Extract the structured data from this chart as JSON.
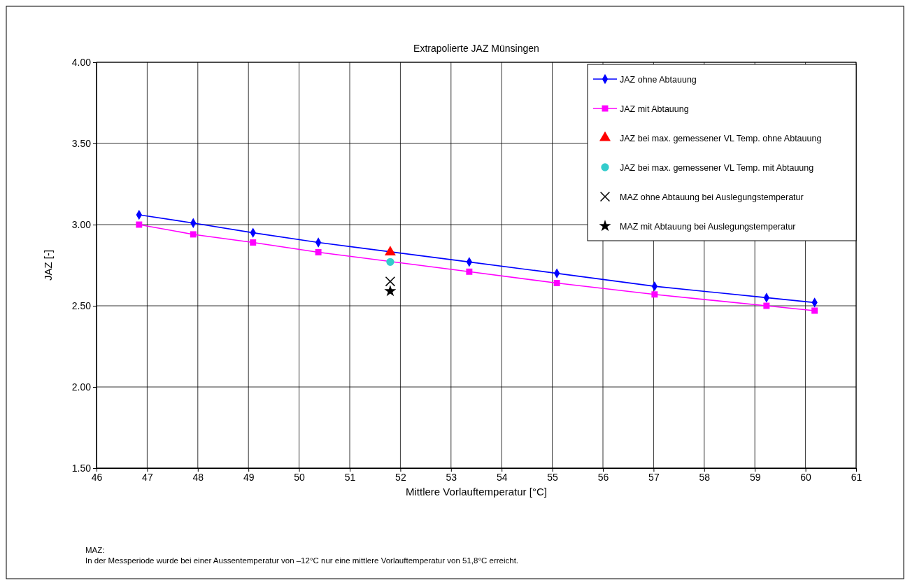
{
  "chart_data": {
    "type": "line",
    "title": "Extrapolierte JAZ Münsingen",
    "xlabel": "Mittlere Vorlauftemperatur [°C]",
    "ylabel": "JAZ [-]",
    "annotations": [
      "MAZ:",
      "In der Messperiode wurde bei einer Aussentemperatur von –12°C nur eine mittlere Vorlauftemperatur von 51,8°C erreicht."
    ],
    "xlim": [
      46,
      61
    ],
    "xticks": [
      46,
      47,
      48,
      49,
      50,
      51,
      52,
      53,
      54,
      55,
      56,
      57,
      58,
      59,
      60,
      61
    ],
    "ylim": [
      1.5,
      4
    ],
    "yticks": [
      {
        "value": 1.5,
        "label": "1.50"
      },
      {
        "value": 2,
        "label": "2.00"
      },
      {
        "value": 2.5,
        "label": "2.50"
      },
      {
        "value": 3,
        "label": "3.00"
      },
      {
        "value": 3.5,
        "label": "3.50"
      },
      {
        "value": 4,
        "label": "4.00"
      }
    ],
    "grid": true,
    "legend": "top right",
    "series": [
      {
        "name": "JAZ ohne Abtauung",
        "marker": "diamond",
        "color": "#0000ff",
        "x": [
          46.84,
          47.91,
          49.09,
          50.38,
          53.36,
          55.09,
          57.02,
          59.23,
          60.18
        ],
        "values": [
          3.06,
          3.01,
          2.95,
          2.89,
          2.77,
          2.7,
          2.62,
          2.55,
          2.52
        ]
      },
      {
        "name": "JAZ mit Abtauung",
        "marker": "square",
        "color": "#ff00ff",
        "x": [
          46.84,
          47.91,
          49.09,
          50.38,
          53.36,
          55.09,
          57.02,
          59.23,
          60.18
        ],
        "values": [
          3.0,
          2.94,
          2.89,
          2.83,
          2.71,
          2.64,
          2.57,
          2.5,
          2.47
        ]
      },
      {
        "name": "JAZ bei max. gemessener VL Temp. ohne Abtauung",
        "type": "scatter",
        "marker": "triangle",
        "color": "#ff0000",
        "x": [
          51.8
        ],
        "values": [
          2.83
        ]
      },
      {
        "name": "JAZ bei max. gemessener VL Temp. mit Abtauung",
        "type": "scatter",
        "marker": "circle",
        "color": "#33cccc",
        "x": [
          51.8
        ],
        "values": [
          2.77
        ]
      },
      {
        "name": "MAZ ohne Abtauung bei Auslegungstemperatur",
        "type": "scatter",
        "marker": "cross",
        "color": "#000000",
        "x": [
          51.8
        ],
        "values": [
          2.65
        ]
      },
      {
        "name": "MAZ mit Abtauung bei Auslegungstemperatur",
        "type": "scatter",
        "marker": "star",
        "color": "#000000",
        "x": [
          51.8
        ],
        "values": [
          2.59
        ]
      }
    ]
  }
}
